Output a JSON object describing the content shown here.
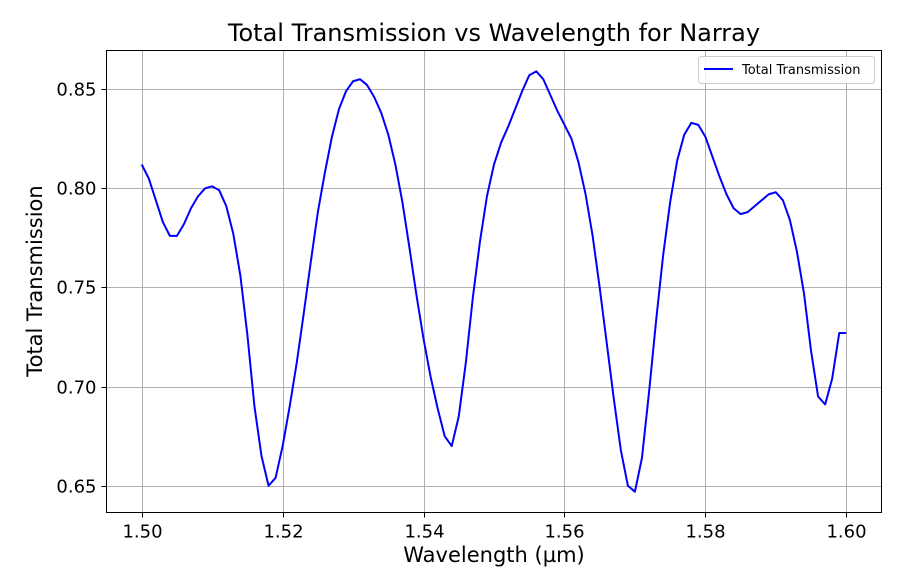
{
  "chart_data": {
    "type": "line",
    "title": "Total Transmission vs Wavelength for Narray",
    "xlabel": "Wavelength (µm)",
    "ylabel": "Total Transmission",
    "xlim": [
      1.495,
      1.605
    ],
    "ylim": [
      0.6365,
      0.8695
    ],
    "xticks": [
      1.5,
      1.52,
      1.54,
      1.56,
      1.58,
      1.6
    ],
    "xtick_labels": [
      "1.50",
      "1.52",
      "1.54",
      "1.56",
      "1.58",
      "1.60"
    ],
    "yticks": [
      0.65,
      0.7,
      0.75,
      0.8,
      0.85
    ],
    "ytick_labels": [
      "0.65",
      "0.70",
      "0.75",
      "0.80",
      "0.85"
    ],
    "grid": true,
    "legend_position": "top-right",
    "series": [
      {
        "name": "Total Transmission",
        "color": "#0000ff",
        "x": [
          1.5,
          1.501,
          1.502,
          1.503,
          1.504,
          1.505,
          1.506,
          1.507,
          1.508,
          1.509,
          1.51,
          1.511,
          1.512,
          1.513,
          1.514,
          1.515,
          1.516,
          1.517,
          1.518,
          1.519,
          1.52,
          1.521,
          1.522,
          1.523,
          1.524,
          1.525,
          1.526,
          1.527,
          1.528,
          1.529,
          1.53,
          1.531,
          1.532,
          1.533,
          1.534,
          1.535,
          1.536,
          1.537,
          1.538,
          1.539,
          1.54,
          1.541,
          1.542,
          1.543,
          1.544,
          1.545,
          1.546,
          1.547,
          1.548,
          1.549,
          1.55,
          1.551,
          1.552,
          1.553,
          1.554,
          1.555,
          1.556,
          1.557,
          1.558,
          1.559,
          1.56,
          1.561,
          1.562,
          1.563,
          1.564,
          1.565,
          1.566,
          1.567,
          1.568,
          1.569,
          1.57,
          1.571,
          1.572,
          1.573,
          1.574,
          1.575,
          1.576,
          1.577,
          1.578,
          1.579,
          1.58,
          1.581,
          1.582,
          1.583,
          1.584,
          1.585,
          1.586,
          1.587,
          1.588,
          1.589,
          1.59,
          1.591,
          1.592,
          1.593,
          1.594,
          1.595,
          1.596,
          1.597,
          1.598,
          1.599,
          1.6
        ],
        "y": [
          0.812,
          0.805,
          0.794,
          0.783,
          0.776,
          0.776,
          0.782,
          0.79,
          0.796,
          0.8,
          0.801,
          0.799,
          0.791,
          0.777,
          0.756,
          0.726,
          0.69,
          0.665,
          0.65,
          0.654,
          0.67,
          0.69,
          0.712,
          0.737,
          0.763,
          0.788,
          0.808,
          0.826,
          0.84,
          0.849,
          0.854,
          0.855,
          0.852,
          0.846,
          0.838,
          0.827,
          0.812,
          0.793,
          0.77,
          0.746,
          0.724,
          0.705,
          0.689,
          0.675,
          0.67,
          0.685,
          0.712,
          0.745,
          0.773,
          0.796,
          0.812,
          0.823,
          0.831,
          0.84,
          0.849,
          0.857,
          0.859,
          0.855,
          0.847,
          0.839,
          0.832,
          0.825,
          0.813,
          0.797,
          0.776,
          0.75,
          0.722,
          0.694,
          0.668,
          0.65,
          0.647,
          0.664,
          0.697,
          0.733,
          0.766,
          0.793,
          0.814,
          0.827,
          0.833,
          0.832,
          0.826,
          0.816,
          0.806,
          0.797,
          0.79,
          0.787,
          0.788,
          0.791,
          0.794,
          0.797,
          0.798,
          0.794,
          0.784,
          0.768,
          0.747,
          0.718,
          0.695,
          0.691,
          0.704,
          0.727,
          0.727
        ]
      }
    ]
  }
}
